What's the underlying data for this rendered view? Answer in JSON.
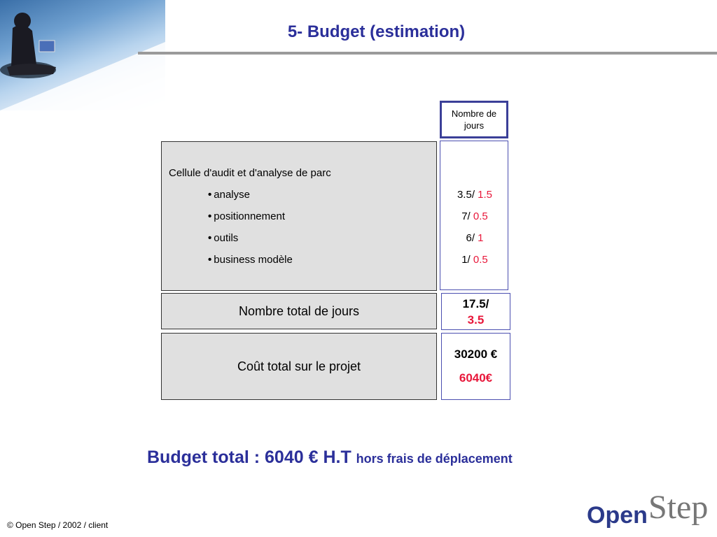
{
  "slide": {
    "title": "5- Budget (estimation)"
  },
  "table": {
    "header": "Nombre de jours",
    "section_title": "Cellule d'audit et d'analyse de parc",
    "items": [
      {
        "label": "analyse",
        "base": "3.5/ ",
        "value": "1.5"
      },
      {
        "label": "positionnement",
        "base": "7/ ",
        "value": "0.5"
      },
      {
        "label": "outils",
        "base": "6/ ",
        "value": "1"
      },
      {
        "label": "business modèle",
        "base": "1/ ",
        "value": "0.5"
      }
    ],
    "total_days_label": "Nombre total de jours",
    "total_days_base": "17.5/",
    "total_days_value": "3.5",
    "total_cost_label": "Coût total sur le projet",
    "total_cost_base": "30200 €",
    "total_cost_value": "6040€"
  },
  "budget": {
    "main": "Budget total : 6040 € H.T",
    "note": "hors frais de déplacement"
  },
  "footer": {
    "copyright": "© Open Step / 2002 / client"
  },
  "logo": {
    "open": "Open",
    "step": "Step"
  },
  "colors": {
    "title": "#2b2f9a",
    "highlight": "#e8173a"
  }
}
